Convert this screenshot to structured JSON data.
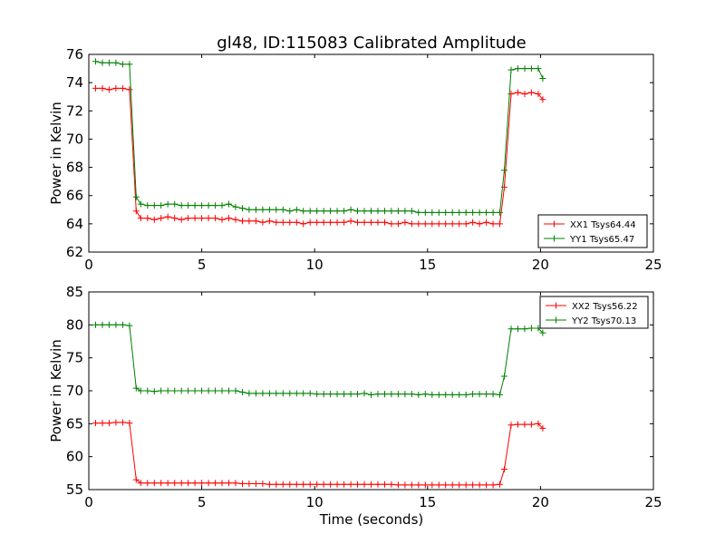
{
  "figure": {
    "title": "gl48, ID:115083 Calibrated Amplitude",
    "xlabel": "Time (seconds)"
  },
  "colors": {
    "xx": "#ff0000",
    "yy": "#008000",
    "axes": "#000000",
    "background": "#ffffff"
  },
  "chart_data": [
    {
      "type": "line",
      "title": "gl48, ID:115083 Calibrated Amplitude",
      "xlabel": "",
      "ylabel": "Power in Kelvin",
      "xlim": [
        0,
        25
      ],
      "ylim": [
        62,
        76
      ],
      "xticks": [
        0,
        5,
        10,
        15,
        20,
        25
      ],
      "yticks": [
        62,
        64,
        66,
        68,
        70,
        72,
        74,
        76
      ],
      "grid": false,
      "legend_position": "lower-right",
      "marker": "+",
      "x": [
        0.3,
        0.6,
        0.9,
        1.2,
        1.5,
        1.8,
        2.1,
        2.3,
        2.6,
        2.9,
        3.2,
        3.5,
        3.8,
        4.1,
        4.4,
        4.7,
        5.0,
        5.3,
        5.6,
        5.9,
        6.2,
        6.5,
        6.8,
        7.1,
        7.4,
        7.7,
        8.0,
        8.3,
        8.6,
        8.9,
        9.2,
        9.5,
        9.8,
        10.1,
        10.4,
        10.7,
        11.0,
        11.3,
        11.6,
        11.9,
        12.2,
        12.5,
        12.8,
        13.1,
        13.4,
        13.7,
        14.0,
        14.3,
        14.6,
        14.9,
        15.2,
        15.5,
        15.8,
        16.1,
        16.4,
        16.7,
        17.0,
        17.3,
        17.6,
        17.9,
        18.2,
        18.4,
        18.7,
        19.0,
        19.3,
        19.6,
        19.9,
        20.1
      ],
      "series": [
        {
          "name": "XX1 Tsys64.44",
          "color": "#ff0000",
          "values": [
            73.6,
            73.6,
            73.5,
            73.6,
            73.6,
            73.5,
            64.9,
            64.4,
            64.4,
            64.3,
            64.4,
            64.5,
            64.4,
            64.3,
            64.4,
            64.4,
            64.4,
            64.4,
            64.4,
            64.3,
            64.4,
            64.3,
            64.2,
            64.2,
            64.2,
            64.1,
            64.2,
            64.1,
            64.1,
            64.1,
            64.1,
            64.0,
            64.1,
            64.1,
            64.1,
            64.1,
            64.1,
            64.1,
            64.2,
            64.1,
            64.1,
            64.1,
            64.1,
            64.1,
            64.0,
            64.0,
            64.1,
            64.0,
            64.0,
            64.0,
            64.0,
            64.0,
            64.0,
            64.0,
            64.0,
            64.0,
            64.1,
            64.0,
            64.1,
            64.0,
            64.0,
            66.6,
            73.2,
            73.3,
            73.2,
            73.3,
            73.2,
            72.8
          ]
        },
        {
          "name": "YY1 Tsys65.47",
          "color": "#008000",
          "values": [
            75.5,
            75.4,
            75.4,
            75.4,
            75.3,
            75.3,
            65.9,
            65.4,
            65.3,
            65.3,
            65.3,
            65.4,
            65.4,
            65.3,
            65.3,
            65.3,
            65.3,
            65.3,
            65.3,
            65.3,
            65.4,
            65.2,
            65.1,
            65.0,
            65.0,
            65.0,
            65.0,
            65.0,
            65.0,
            64.9,
            65.0,
            64.9,
            64.9,
            64.9,
            64.9,
            64.9,
            64.9,
            64.9,
            65.0,
            64.9,
            64.9,
            64.9,
            64.9,
            64.9,
            64.9,
            64.9,
            64.9,
            64.9,
            64.8,
            64.8,
            64.8,
            64.8,
            64.8,
            64.8,
            64.8,
            64.8,
            64.8,
            64.8,
            64.8,
            64.8,
            64.8,
            67.8,
            74.9,
            75.0,
            75.0,
            75.0,
            75.0,
            74.3
          ]
        }
      ]
    },
    {
      "type": "line",
      "title": "",
      "xlabel": "Time (seconds)",
      "ylabel": "Power in Kelvin",
      "xlim": [
        0,
        25
      ],
      "ylim": [
        55,
        85
      ],
      "xticks": [
        0,
        5,
        10,
        15,
        20,
        25
      ],
      "yticks": [
        55,
        60,
        65,
        70,
        75,
        80,
        85
      ],
      "grid": false,
      "legend_position": "upper-right",
      "marker": "+",
      "x": [
        0.3,
        0.6,
        0.9,
        1.2,
        1.5,
        1.8,
        2.1,
        2.3,
        2.6,
        2.9,
        3.2,
        3.5,
        3.8,
        4.1,
        4.4,
        4.7,
        5.0,
        5.3,
        5.6,
        5.9,
        6.2,
        6.5,
        6.8,
        7.1,
        7.4,
        7.7,
        8.0,
        8.3,
        8.6,
        8.9,
        9.2,
        9.5,
        9.8,
        10.1,
        10.4,
        10.7,
        11.0,
        11.3,
        11.6,
        11.9,
        12.2,
        12.5,
        12.8,
        13.1,
        13.4,
        13.7,
        14.0,
        14.3,
        14.6,
        14.9,
        15.2,
        15.5,
        15.8,
        16.1,
        16.4,
        16.7,
        17.0,
        17.3,
        17.6,
        17.9,
        18.2,
        18.4,
        18.7,
        19.0,
        19.3,
        19.6,
        19.9,
        20.1
      ],
      "series": [
        {
          "name": "XX2 Tsys56.22",
          "color": "#ff0000",
          "values": [
            65.1,
            65.1,
            65.1,
            65.2,
            65.2,
            65.1,
            56.5,
            56.0,
            56.0,
            56.0,
            56.0,
            56.0,
            56.0,
            56.0,
            56.0,
            56.0,
            56.0,
            56.0,
            56.0,
            56.0,
            56.0,
            56.0,
            55.9,
            55.9,
            55.9,
            55.9,
            55.8,
            55.8,
            55.8,
            55.8,
            55.8,
            55.8,
            55.8,
            55.8,
            55.8,
            55.8,
            55.8,
            55.8,
            55.8,
            55.8,
            55.8,
            55.8,
            55.8,
            55.8,
            55.8,
            55.7,
            55.7,
            55.7,
            55.7,
            55.7,
            55.7,
            55.7,
            55.7,
            55.7,
            55.7,
            55.7,
            55.7,
            55.7,
            55.7,
            55.7,
            55.8,
            58.1,
            64.8,
            64.9,
            64.9,
            64.9,
            65.0,
            64.3
          ]
        },
        {
          "name": "YY2 Tsys70.13",
          "color": "#008000",
          "values": [
            80.0,
            80.0,
            80.0,
            80.0,
            80.0,
            79.9,
            70.4,
            70.0,
            70.0,
            69.9,
            70.0,
            70.0,
            70.0,
            70.0,
            70.0,
            70.0,
            70.0,
            70.0,
            70.0,
            70.0,
            70.0,
            70.0,
            69.8,
            69.6,
            69.6,
            69.6,
            69.6,
            69.6,
            69.6,
            69.6,
            69.6,
            69.6,
            69.6,
            69.5,
            69.5,
            69.5,
            69.5,
            69.5,
            69.5,
            69.5,
            69.6,
            69.4,
            69.5,
            69.5,
            69.5,
            69.5,
            69.5,
            69.5,
            69.4,
            69.5,
            69.4,
            69.4,
            69.4,
            69.4,
            69.4,
            69.4,
            69.5,
            69.5,
            69.5,
            69.5,
            69.4,
            72.2,
            79.4,
            79.4,
            79.4,
            79.5,
            79.5,
            78.8
          ]
        }
      ]
    }
  ]
}
